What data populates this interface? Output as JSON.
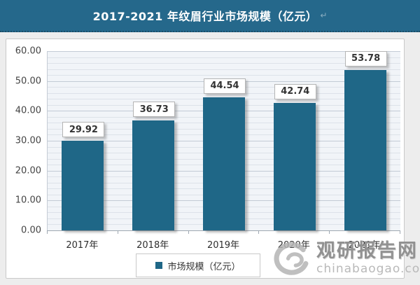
{
  "header": {
    "title": "2017-2021 年纹眉行业市场规模（亿元）",
    "return_mark": "↵",
    "bg_color": "#25688b"
  },
  "chart_data": {
    "type": "bar",
    "title": "2017-2021 年纹眉行业市场规模（亿元）",
    "categories": [
      "2017年",
      "2018年",
      "2019年",
      "2020年",
      "2021年"
    ],
    "values": [
      29.92,
      36.73,
      44.54,
      42.74,
      53.78
    ],
    "series_name": "市场规模（亿元）",
    "xlabel": "",
    "ylabel": "",
    "ylim": [
      0,
      60
    ],
    "y_major_step": 10,
    "y_minor_step": 2,
    "y_tick_labels": [
      "0.00",
      "10.00",
      "20.00",
      "30.00",
      "40.00",
      "50.00",
      "60.00"
    ],
    "grid": true,
    "legend_position": "bottom",
    "bar_color": "#1f6787",
    "plot_bg_color": "#f1f4f8",
    "data_labels": [
      "29.92",
      "36.73",
      "44.54",
      "42.74",
      "53.78"
    ]
  },
  "legend": {
    "label": "市场规模（亿元）",
    "marker_color": "#1f6787"
  },
  "watermark": {
    "name": "观研报告网",
    "domain": "chinabaogao.com",
    "logo": "swirl-logo"
  }
}
